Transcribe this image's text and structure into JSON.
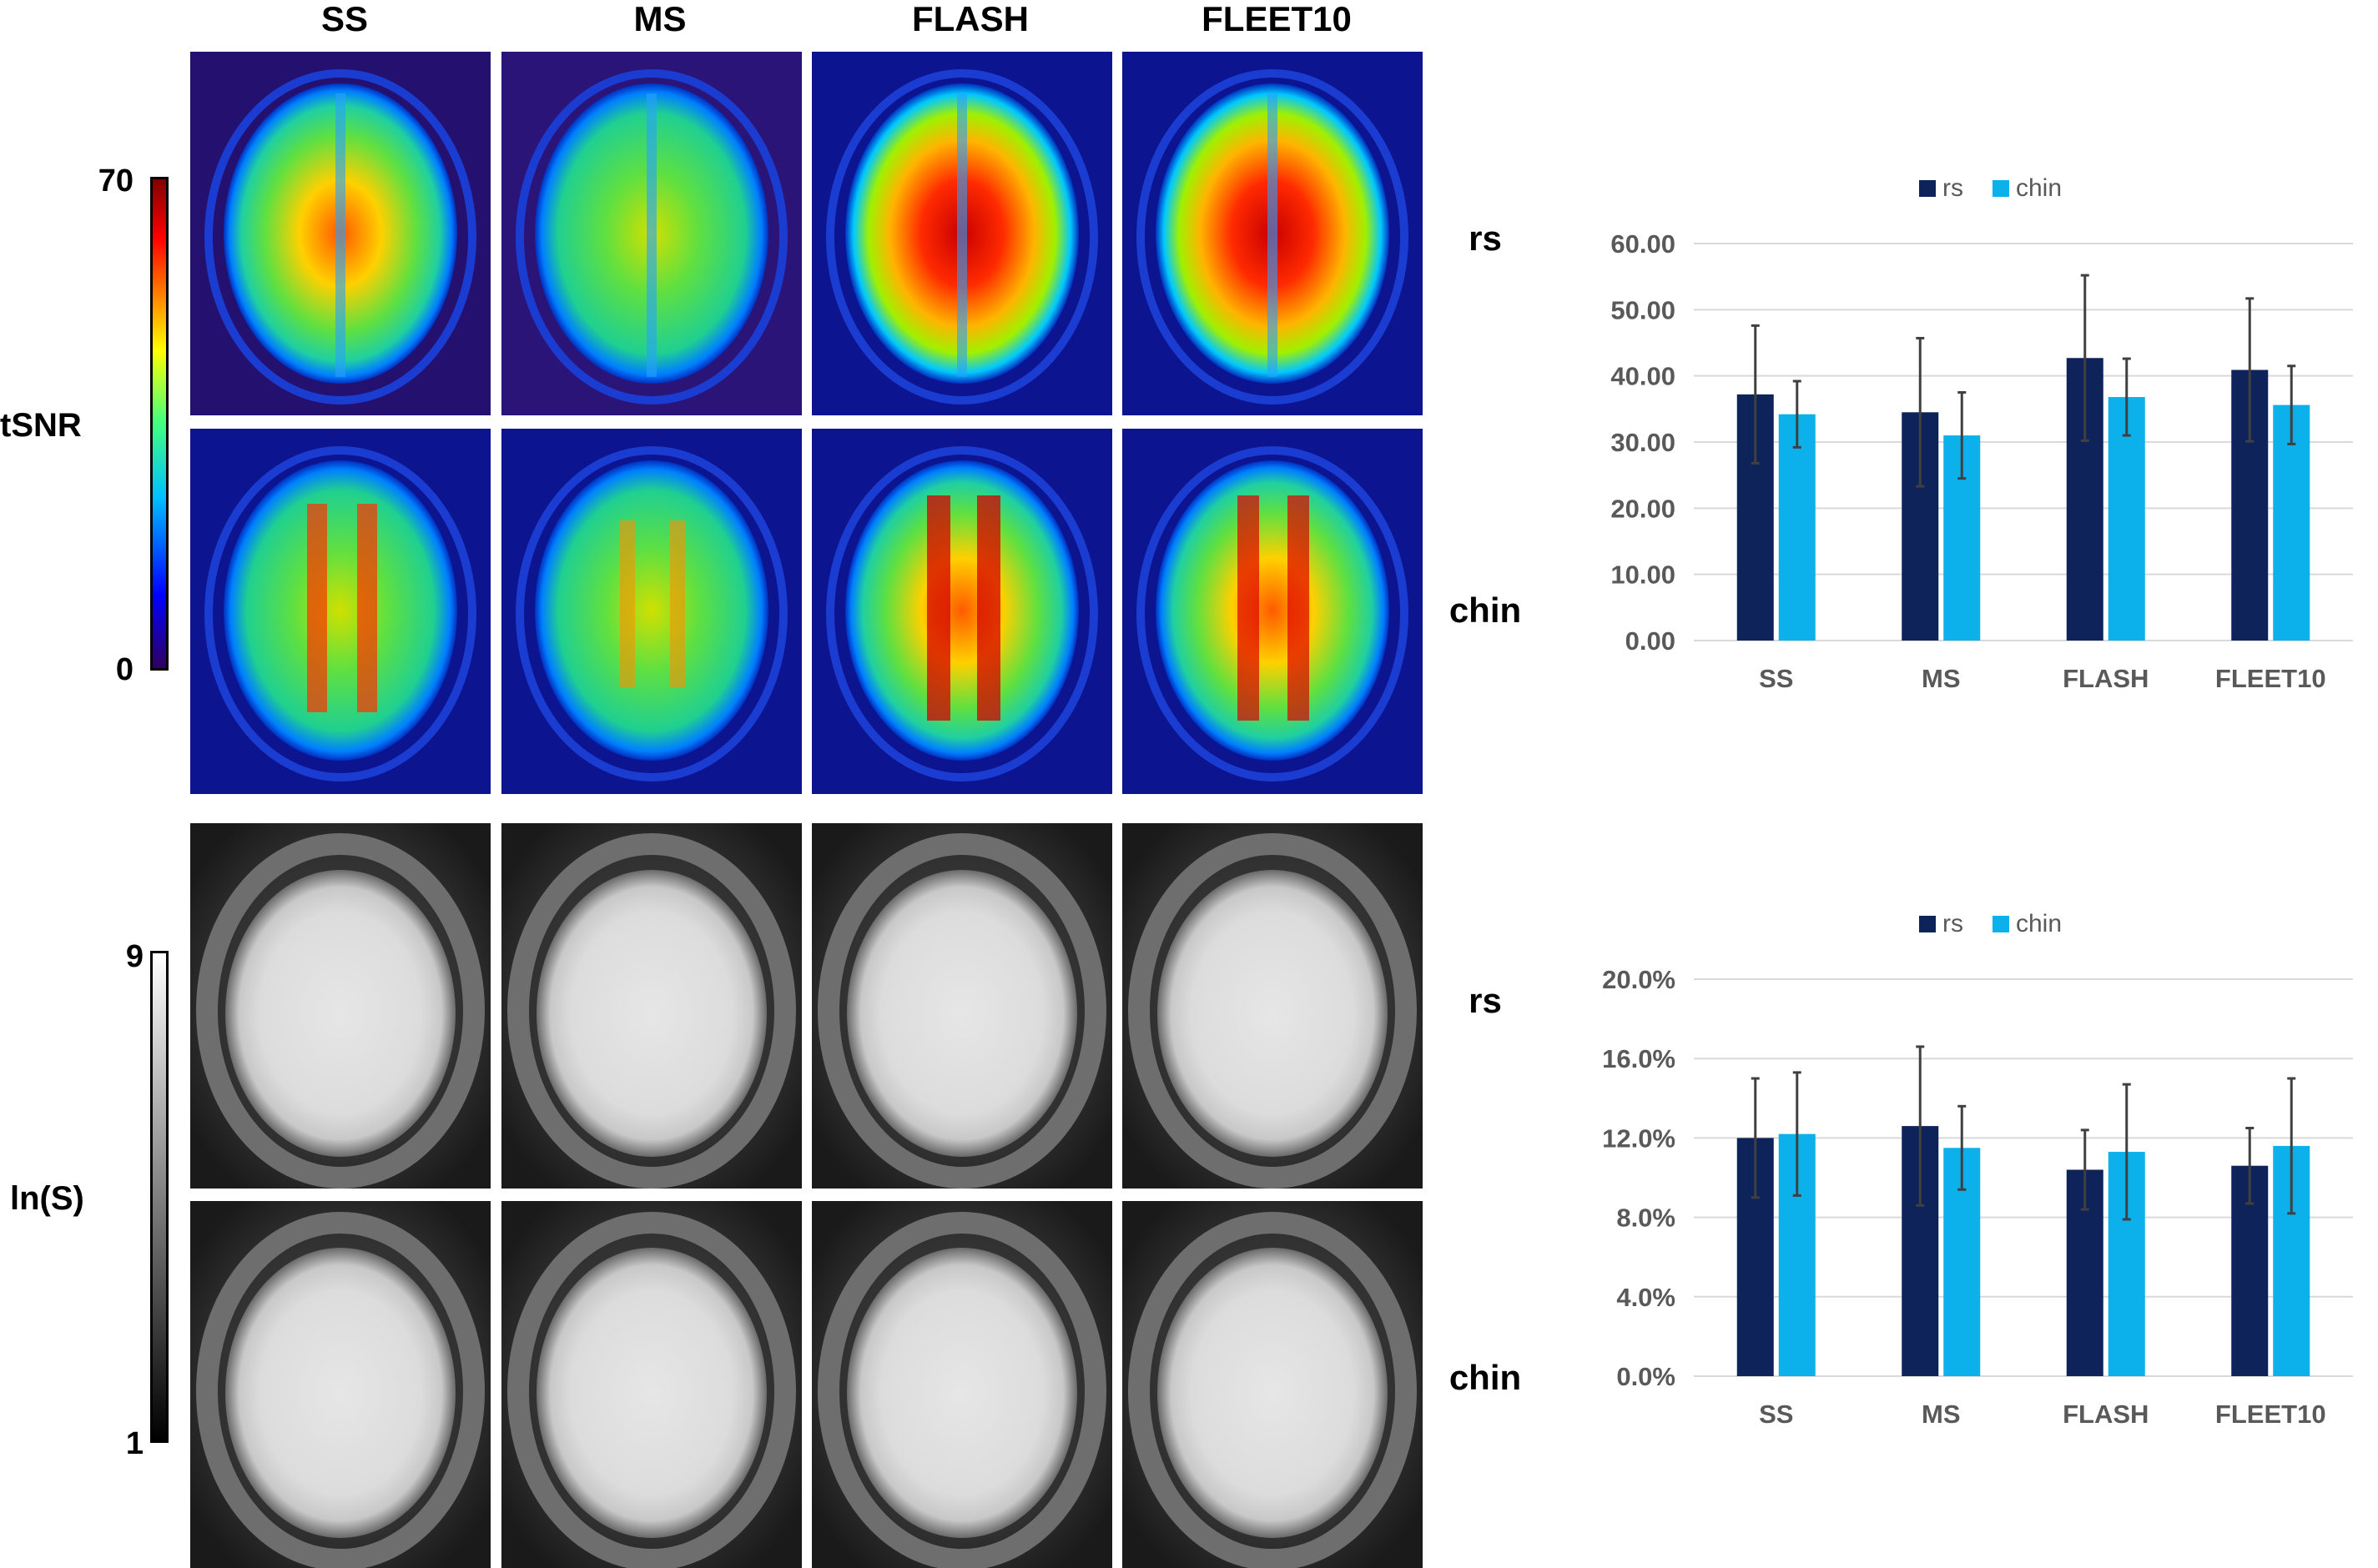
{
  "columns": [
    "SS",
    "MS",
    "FLASH",
    "FLEET10"
  ],
  "row_labels": {
    "top_rs": "rs",
    "top_chin": "chin",
    "bottom_rs": "rs",
    "bottom_chin": "chin"
  },
  "tsnr_scale": {
    "label": "tSNR",
    "max": "70",
    "min": "0"
  },
  "lns_scale": {
    "label": "ln(S)",
    "max": "9",
    "min": "1"
  },
  "colors": {
    "rs": "#0d2359",
    "chin": "#0cb0ea",
    "grid": "#d9d9d9",
    "axis_text": "#595959",
    "error": "#404040"
  },
  "chart_data": [
    {
      "type": "bar",
      "title": "",
      "categories": [
        "SS",
        "MS",
        "FLASH",
        "FLEET10"
      ],
      "series": [
        {
          "name": "rs",
          "values": [
            37.2,
            34.5,
            42.7,
            40.9
          ],
          "errors": [
            10.4,
            11.2,
            12.5,
            10.8
          ]
        },
        {
          "name": "chin",
          "values": [
            34.2,
            31.0,
            36.8,
            35.6
          ],
          "errors": [
            5.0,
            6.5,
            5.8,
            5.9
          ]
        }
      ],
      "ylim": [
        0,
        60
      ],
      "yticks": [
        "0.00",
        "10.00",
        "20.00",
        "30.00",
        "40.00",
        "50.00",
        "60.00"
      ],
      "legend_position": "top-center",
      "xlabel": "",
      "ylabel": ""
    },
    {
      "type": "bar",
      "title": "",
      "categories": [
        "SS",
        "MS",
        "FLASH",
        "FLEET10"
      ],
      "series": [
        {
          "name": "rs",
          "values": [
            12.0,
            12.6,
            10.4,
            10.6
          ],
          "errors": [
            3.0,
            4.0,
            2.0,
            1.9
          ]
        },
        {
          "name": "chin",
          "values": [
            12.2,
            11.5,
            11.3,
            11.6
          ],
          "errors": [
            3.1,
            2.1,
            3.4,
            3.4
          ]
        }
      ],
      "ylim": [
        0,
        20
      ],
      "yticks": [
        "0.0%",
        "4.0%",
        "8.0%",
        "12.0%",
        "16.0%",
        "20.0%"
      ],
      "legend_position": "top-center",
      "xlabel": "",
      "ylabel": ""
    }
  ]
}
